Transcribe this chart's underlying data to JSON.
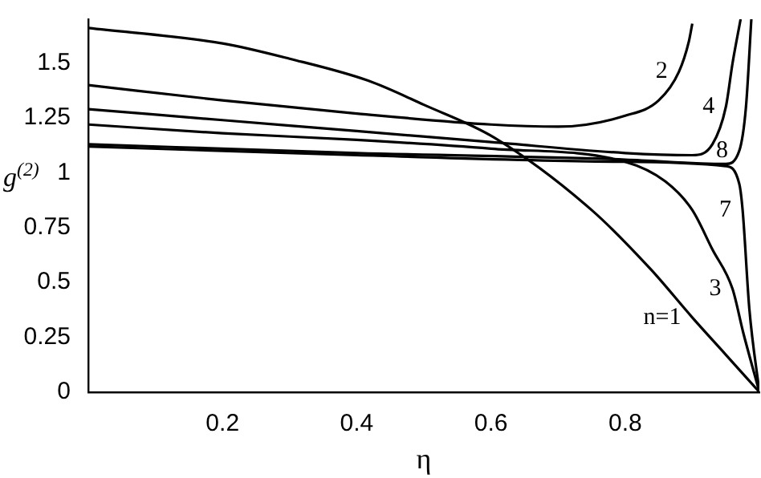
{
  "chart_data": {
    "type": "line",
    "xlabel": "η",
    "ylabel": "g$^{(2)}$",
    "xlim": [
      0,
      1
    ],
    "ylim": [
      0,
      1.7
    ],
    "xticks": [
      0.2,
      0.4,
      0.6,
      0.8
    ],
    "yticks": [
      0,
      0.25,
      0.5,
      0.75,
      1,
      1.25,
      1.5
    ],
    "marker": "none",
    "line_style": "solid",
    "legend": false,
    "series": [
      {
        "name": "n=1",
        "color": "#000000",
        "x": [
          0,
          0.2,
          0.3,
          0.417,
          0.5,
          0.605,
          0.75,
          0.838,
          0.9,
          0.95,
          1
        ],
        "values": [
          1.66,
          1.59,
          1.52,
          1.42,
          1.31,
          1.16,
          0.83,
          0.56,
          0.34,
          0.17,
          0
        ]
      },
      {
        "name": "2",
        "color": "#000000",
        "x": [
          0,
          0.2,
          0.4,
          0.6,
          0.7,
          0.8,
          0.85,
          0.88,
          0.895,
          0.9
        ],
        "values": [
          1.4,
          1.33,
          1.27,
          1.22,
          1.21,
          1.26,
          1.33,
          1.46,
          1.6,
          1.68
        ]
      },
      {
        "name": "3",
        "color": "#000000",
        "x": [
          0,
          0.2,
          0.4,
          0.6,
          0.8,
          0.86,
          0.9,
          0.93,
          0.96,
          0.976,
          1
        ],
        "values": [
          1.22,
          1.18,
          1.15,
          1.11,
          1.05,
          0.96,
          0.83,
          0.65,
          0.47,
          0.27,
          0
        ]
      },
      {
        "name": "4",
        "color": "#000000",
        "x": [
          0,
          0.2,
          0.4,
          0.6,
          0.8,
          0.9,
          0.93,
          0.95,
          0.96,
          0.972
        ],
        "values": [
          1.29,
          1.24,
          1.19,
          1.14,
          1.09,
          1.08,
          1.13,
          1.3,
          1.5,
          1.7
        ]
      },
      {
        "name": "7",
        "color": "#000000",
        "x": [
          0,
          0.4,
          0.8,
          0.95,
          0.97,
          0.975,
          0.985,
          1
        ],
        "values": [
          1.12,
          1.08,
          1.05,
          1.03,
          0.95,
          0.83,
          0.38,
          0
        ]
      },
      {
        "name": "8",
        "color": "#000000",
        "x": [
          0,
          0.4,
          0.8,
          0.95,
          0.97,
          0.98,
          0.988
        ],
        "values": [
          1.13,
          1.09,
          1.06,
          1.04,
          1.1,
          1.3,
          1.7
        ]
      }
    ]
  }
}
